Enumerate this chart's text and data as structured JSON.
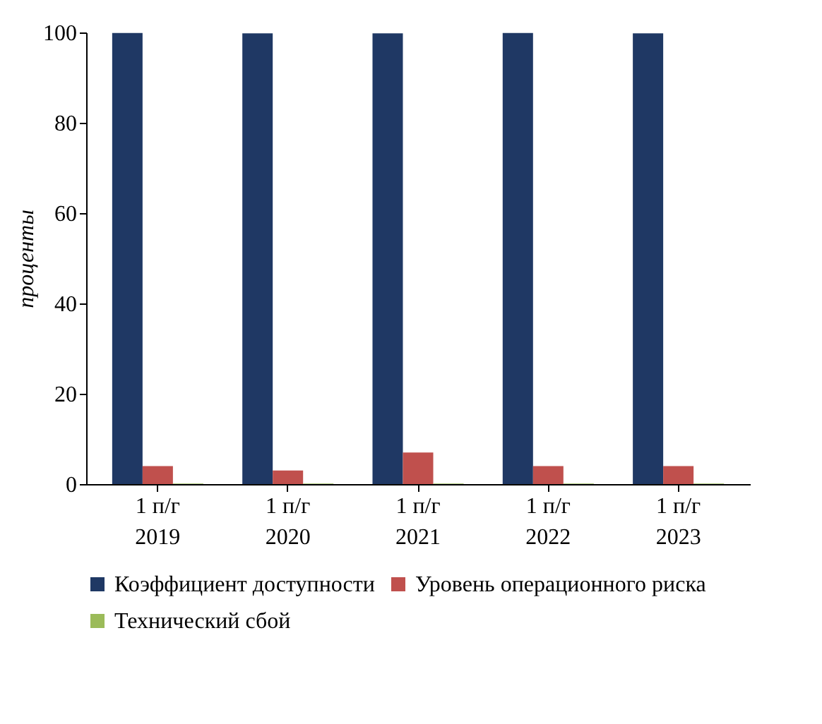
{
  "chart_data": {
    "type": "bar",
    "ylabel": "проценты",
    "categories": [
      "1 п/г 2019",
      "1 п/г 2020",
      "1 п/г 2021",
      "1 п/г 2022",
      "1 п/г 2023"
    ],
    "series": [
      {
        "name": "Коэффициент доступности",
        "color": "#1f3864",
        "values": [
          99.9,
          99.8,
          99.8,
          99.9,
          99.8
        ]
      },
      {
        "name": "Уровень операционного риска",
        "color": "#c0504d",
        "values": [
          4,
          3,
          7,
          4,
          4
        ]
      },
      {
        "name": "Технический сбой",
        "color": "#9bbb59",
        "values": [
          0.1,
          0.1,
          0.1,
          0.1,
          0.1
        ]
      }
    ],
    "ylim": [
      0,
      100
    ],
    "yticks": [
      0,
      20,
      40,
      60,
      80,
      100
    ],
    "grid": false,
    "legend": "bottom"
  }
}
